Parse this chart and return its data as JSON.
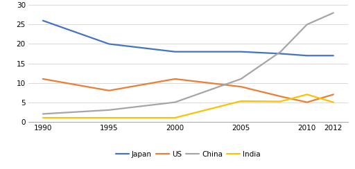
{
  "years": [
    1990,
    1995,
    2000,
    2005,
    2008,
    2010,
    2012
  ],
  "japan": [
    26,
    20,
    18,
    18,
    17.5,
    17,
    17
  ],
  "us": [
    11,
    8,
    11,
    9,
    6.5,
    5,
    7
  ],
  "china": [
    2,
    3,
    5,
    11,
    18,
    25,
    28
  ],
  "india": [
    1,
    1,
    1,
    5.3,
    5.2,
    7,
    5
  ],
  "colors": {
    "japan": "#4472C4",
    "us": "#ED7D31",
    "china": "#A5A5A5",
    "india": "#FFC000"
  },
  "legend_labels": [
    "Japan",
    "US",
    "China",
    "India"
  ],
  "ylim": [
    0,
    30
  ],
  "yticks": [
    0,
    5,
    10,
    15,
    20,
    25,
    30
  ],
  "xticks": [
    1990,
    1995,
    2000,
    2005,
    2010,
    2012
  ],
  "background_color": "#ffffff",
  "linewidth": 1.6
}
